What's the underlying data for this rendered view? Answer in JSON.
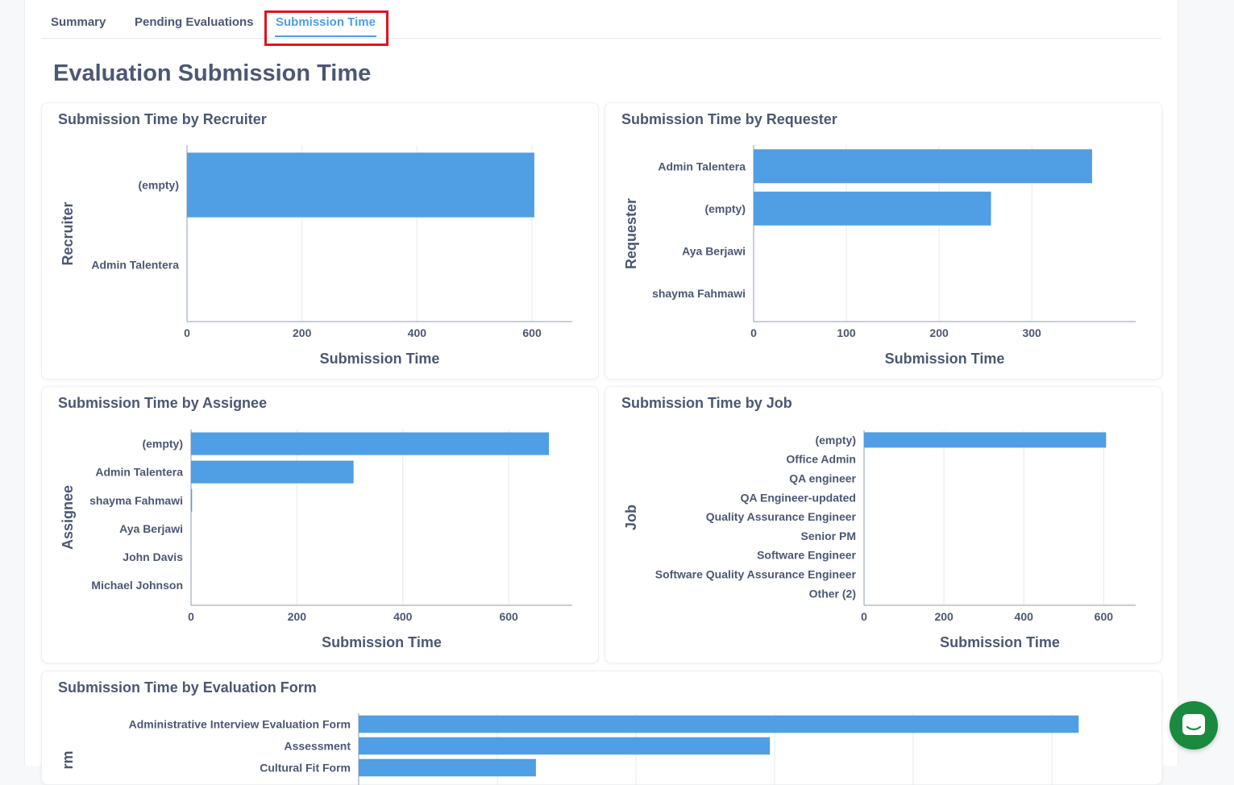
{
  "tabs": [
    {
      "label": "Summary",
      "active": false
    },
    {
      "label": "Pending Evaluations",
      "active": false
    },
    {
      "label": "Submission Time",
      "active": true
    }
  ],
  "page_title": "Evaluation Submission Time",
  "colors": {
    "bar": "#509ee3",
    "grid": "#e6e9ef",
    "text": "#4c5773",
    "chat": "#1a8a3e",
    "highlight": "#e0141e"
  },
  "chat_icon": "chat-bubble-icon",
  "chart_data": [
    {
      "id": "recruiter",
      "title": "Submission Time by Recruiter",
      "type": "bar",
      "orientation": "horizontal",
      "xlabel": "Submission Time",
      "ylabel": "Recruiter",
      "categories": [
        "(empty)",
        "Admin Talentera"
      ],
      "values": [
        604,
        0
      ],
      "xlim": [
        0,
        670
      ],
      "xticks": [
        0,
        200,
        400,
        600
      ],
      "grid": true
    },
    {
      "id": "requester",
      "title": "Submission Time by Requester",
      "type": "bar",
      "orientation": "horizontal",
      "xlabel": "Submission Time",
      "ylabel": "Requester",
      "categories": [
        "Admin Talentera",
        "(empty)",
        "Aya Berjawi",
        "shayma Fahmawi"
      ],
      "values": [
        365,
        256,
        0,
        0
      ],
      "xlim": [
        0,
        412
      ],
      "xticks": [
        0,
        100,
        200,
        300
      ],
      "grid": true
    },
    {
      "id": "assignee",
      "title": "Submission Time by Assignee",
      "type": "bar",
      "orientation": "horizontal",
      "xlabel": "Submission Time",
      "ylabel": "Assignee",
      "categories": [
        "(empty)",
        "Admin Talentera",
        "shayma Fahmawi",
        "Aya Berjawi",
        "John Davis",
        "Michael Johnson"
      ],
      "values": [
        676,
        307,
        2,
        0,
        0,
        0
      ],
      "xlim": [
        0,
        720
      ],
      "xticks": [
        0,
        200,
        400,
        600
      ],
      "grid": true
    },
    {
      "id": "job",
      "title": "Submission Time by Job",
      "type": "bar",
      "orientation": "horizontal",
      "xlabel": "Submission Time",
      "ylabel": "Job",
      "categories": [
        "(empty)",
        "Office Admin",
        "QA engineer",
        "QA Engineer-updated",
        "Quality Assurance Engineer",
        "Senior PM",
        "Software Engineer",
        "Software Quality Assurance Engineer",
        "Other (2)"
      ],
      "values": [
        606,
        0,
        0,
        0,
        0,
        0,
        0,
        0,
        0
      ],
      "xlim": [
        0,
        680
      ],
      "xticks": [
        0,
        200,
        400,
        600
      ],
      "grid": true
    },
    {
      "id": "form",
      "title": "Submission Time by Evaluation Form",
      "type": "bar",
      "orientation": "horizontal",
      "xlabel": "",
      "ylabel": "rm",
      "categories": [
        "Administrative Interview Evaluation Form",
        "Assessment",
        "Cultural Fit Form"
      ],
      "values": [
        520,
        297,
        128
      ],
      "xlim": [
        0,
        560
      ],
      "xticks": [],
      "grid": true
    }
  ]
}
